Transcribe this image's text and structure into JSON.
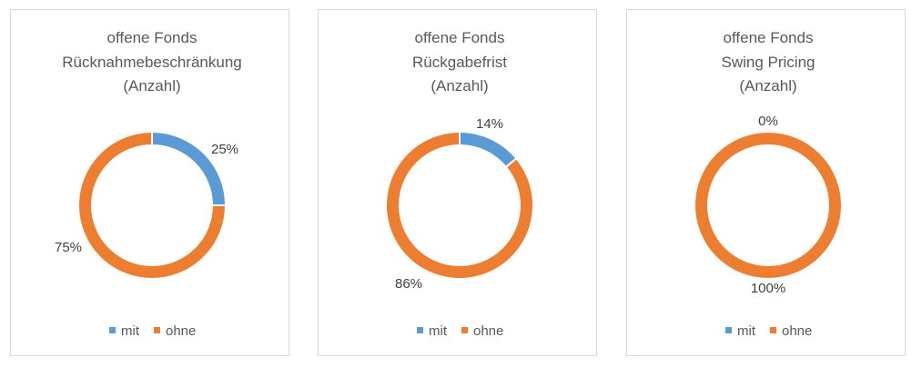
{
  "chart_data": [
    {
      "type": "pie",
      "variant": "donut",
      "title_lines": [
        "offene Fonds",
        "Rücknahmebeschränkung",
        "(Anzahl)"
      ],
      "categories": [
        "mit",
        "ohne"
      ],
      "values": [
        25,
        75
      ],
      "labels": [
        "25%",
        "75%"
      ],
      "colors": [
        "#5b9bd5",
        "#ed7d31"
      ],
      "legend_position": "bottom"
    },
    {
      "type": "pie",
      "variant": "donut",
      "title_lines": [
        "offene Fonds",
        "Rückgabefrist",
        "(Anzahl)"
      ],
      "categories": [
        "mit",
        "ohne"
      ],
      "values": [
        14,
        86
      ],
      "labels": [
        "14%",
        "86%"
      ],
      "colors": [
        "#5b9bd5",
        "#ed7d31"
      ],
      "legend_position": "bottom"
    },
    {
      "type": "pie",
      "variant": "donut",
      "title_lines": [
        "offene Fonds",
        "Swing Pricing",
        "(Anzahl)"
      ],
      "categories": [
        "mit",
        "ohne"
      ],
      "values": [
        0,
        100
      ],
      "labels": [
        "0%",
        "100%"
      ],
      "colors": [
        "#5b9bd5",
        "#ed7d31"
      ],
      "legend_position": "bottom"
    }
  ]
}
